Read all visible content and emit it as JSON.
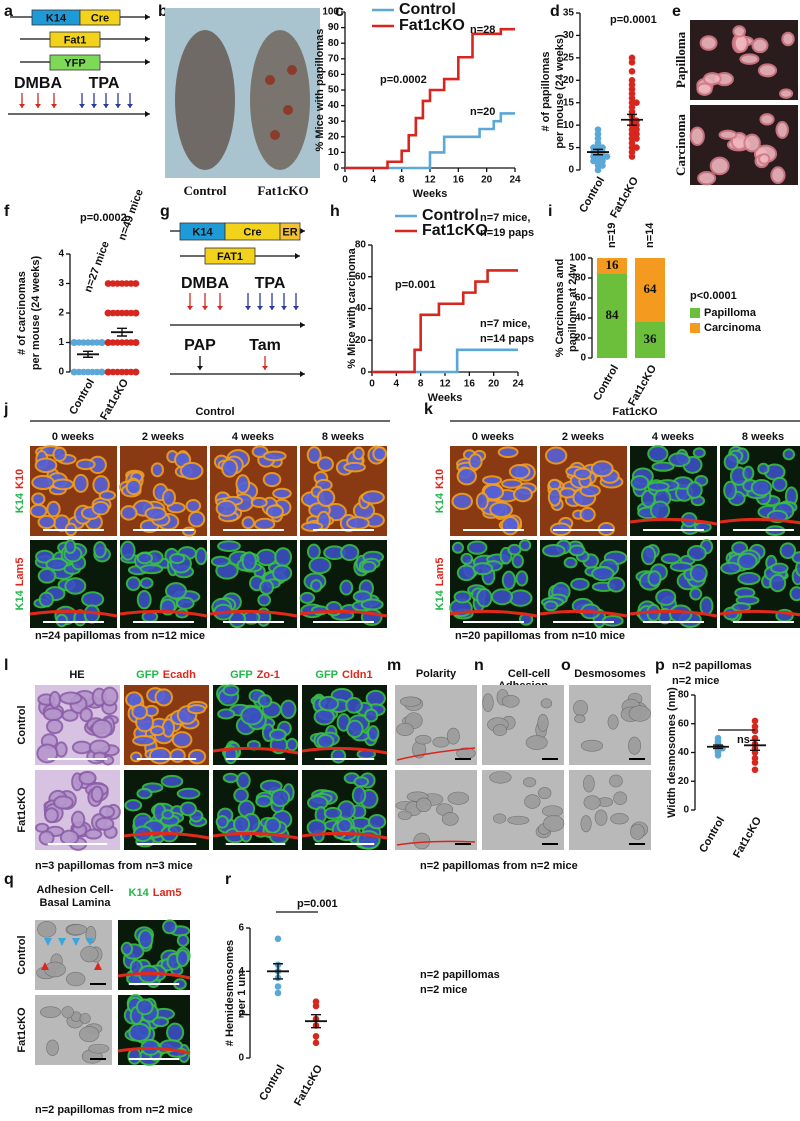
{
  "figure": {
    "a": {
      "label": "a",
      "bars": [
        "K14",
        "Cre",
        "Fat1",
        "YFP"
      ],
      "treatments": [
        "DMBA",
        "TPA"
      ]
    },
    "b": {
      "label": "b",
      "captions": [
        "Control",
        "Fat1cKO"
      ]
    },
    "e": {
      "label": "e",
      "rows": [
        "Papilloma",
        "Carcinoma"
      ]
    },
    "g": {
      "label": "g",
      "bars": [
        "K14",
        "Cre",
        "ER",
        "FAT1"
      ],
      "treatments": [
        "DMBA",
        "TPA"
      ],
      "time": [
        "PAP",
        "Tam"
      ]
    },
    "j": {
      "label": "j",
      "title": "Control",
      "columns": [
        "0 weeks",
        "2 weeks",
        "4 weeks",
        "8 weeks"
      ],
      "rows": [
        {
          "green": "K14",
          "red": "K10"
        },
        {
          "green": "K14",
          "red": "Lam5"
        }
      ],
      "note": "n=24 papillomas from n=12 mice"
    },
    "k": {
      "label": "k",
      "title": "Fat1cKO",
      "columns": [
        "0 weeks",
        "2 weeks",
        "4 weeks",
        "8 weeks"
      ],
      "rows": [
        {
          "green": "K14",
          "red": "K10"
        },
        {
          "green": "K14",
          "red": "Lam5"
        }
      ],
      "note": "n=20 papillomas from n=10 mice"
    },
    "l": {
      "label": "l",
      "columns": [
        {
          "text": "HE"
        },
        {
          "green": "GFP",
          "red": "Ecadh"
        },
        {
          "green": "GFP",
          "red": "Zo-1"
        },
        {
          "green": "GFP",
          "red": "Cldn1"
        }
      ],
      "rows": [
        "Control",
        "Fat1cKO"
      ],
      "note": "n=3 papillomas from n=3 mice"
    },
    "mno": {
      "panels": [
        {
          "label": "m",
          "title": [
            "Polarity"
          ]
        },
        {
          "label": "n",
          "title": [
            "Cell-cell",
            "Adhesion"
          ]
        },
        {
          "label": "o",
          "title": [
            "Desmosomes"
          ]
        }
      ],
      "note": "n=2 papillomas from n=2 mice"
    },
    "q": {
      "label": "q",
      "title": [
        "Adhesion Cell-",
        "Basal Lamina"
      ],
      "stain": {
        "green": "K14",
        "red": "Lam5"
      },
      "rows": [
        "Control",
        "Fat1cKO"
      ],
      "note": "n=2 papillomas from n=2 mice"
    }
  },
  "chart_data": [
    {
      "type": "line",
      "label": "c",
      "ylabel": "% Mice with papillomas",
      "xlabel": "Weeks",
      "xlim": [
        0,
        24
      ],
      "xticks": [
        0,
        4,
        8,
        12,
        16,
        20,
        24
      ],
      "ylim": [
        0,
        100
      ],
      "yticks": [
        0,
        10,
        20,
        30,
        40,
        50,
        60,
        70,
        80,
        90,
        100
      ],
      "series": [
        {
          "name": "Control",
          "color": "#5aa8d8",
          "x": [
            0,
            12,
            12,
            14,
            14,
            19,
            19,
            21,
            21,
            22,
            22,
            24
          ],
          "values": [
            0,
            0,
            10,
            10,
            20,
            20,
            25,
            25,
            30,
            30,
            35,
            35
          ]
        },
        {
          "name": "Fat1cKO",
          "color": "#d7261e",
          "x": [
            0,
            6,
            6,
            8,
            8,
            9,
            9,
            10,
            10,
            11,
            11,
            12,
            12,
            14,
            14,
            16,
            16,
            18,
            18,
            22,
            22,
            24
          ],
          "values": [
            0,
            0,
            4,
            4,
            11,
            11,
            21,
            21,
            32,
            32,
            43,
            43,
            50,
            50,
            57,
            57,
            71,
            71,
            86,
            86,
            89,
            89
          ]
        }
      ],
      "annotations": [
        "n=28",
        "n=20",
        "p=0.0002"
      ]
    },
    {
      "type": "dot",
      "label": "d",
      "ylabel": [
        "# of papillomas",
        "per mouse (24 weeks)"
      ],
      "categories": [
        "Control",
        "Fat1cKO"
      ],
      "ylim": [
        0,
        35
      ],
      "yticks": [
        0,
        5,
        10,
        15,
        20,
        25,
        30,
        35
      ],
      "groups": [
        {
          "color": "#5aa8d8",
          "values": [
            0,
            1,
            1,
            2,
            2,
            2,
            3,
            3,
            3,
            3,
            4,
            4,
            4,
            5,
            5,
            5,
            6,
            7,
            8,
            9
          ],
          "mean": 4,
          "sem": 0.6
        },
        {
          "color": "#d7261e",
          "values": [
            3,
            4,
            5,
            5,
            6,
            7,
            7,
            8,
            8,
            9,
            9,
            10,
            10,
            11,
            11,
            12,
            13,
            14,
            15,
            15,
            16,
            17,
            18,
            19,
            20,
            22,
            24,
            25
          ],
          "mean": 11.2,
          "sem": 1.2
        }
      ],
      "annotations": [
        "p=0.0001"
      ]
    },
    {
      "type": "dot",
      "label": "f",
      "ylabel": [
        "# of carcinomas",
        "per mouse (24 weeks)"
      ],
      "categories": [
        "Control",
        "Fat1cKO"
      ],
      "ylim": [
        0,
        4
      ],
      "yticks": [
        0,
        1,
        2,
        3,
        4
      ],
      "groups": [
        {
          "color": "#5aa8d8",
          "values": [
            0,
            0,
            0,
            0,
            0,
            0,
            0,
            0,
            0,
            0,
            0,
            1,
            1,
            1,
            1,
            1,
            1,
            1,
            1,
            1,
            1,
            1,
            1,
            1,
            1,
            1,
            1
          ],
          "mean": 0.6,
          "sem": 0.1
        },
        {
          "color": "#d7261e",
          "values": [
            0,
            0,
            0,
            0,
            0,
            0,
            0,
            0,
            0,
            0,
            0,
            0,
            1,
            1,
            1,
            1,
            1,
            1,
            1,
            1,
            1,
            1,
            1,
            1,
            1,
            1,
            2,
            2,
            2,
            2,
            2,
            2,
            2,
            2,
            2,
            2,
            2,
            2,
            2,
            2,
            3,
            3,
            3,
            3,
            3,
            3,
            3,
            3,
            3
          ],
          "mean": 1.35,
          "sem": 0.13
        }
      ],
      "annotations": [
        "p=0.0002",
        "n=27 mice",
        "n=49 mice"
      ]
    },
    {
      "type": "line",
      "label": "h",
      "ylabel": "% Mice with carcinoma",
      "xlabel": "Weeks",
      "xlim": [
        0,
        24
      ],
      "xticks": [
        0,
        4,
        8,
        12,
        16,
        20,
        24
      ],
      "ylim": [
        0,
        80
      ],
      "yticks": [
        0,
        20,
        40,
        60,
        80
      ],
      "series": [
        {
          "name": "Control",
          "color": "#5aa8d8",
          "x": [
            0,
            14,
            14,
            24
          ],
          "values": [
            0,
            0,
            14,
            14
          ]
        },
        {
          "name": "Fat1cKO",
          "color": "#d7261e",
          "x": [
            0,
            7,
            7,
            8,
            8,
            11,
            11,
            15,
            15,
            17,
            17,
            19,
            19,
            24
          ],
          "values": [
            0,
            0,
            14,
            14,
            36,
            36,
            43,
            43,
            50,
            50,
            57,
            57,
            64,
            64
          ]
        }
      ],
      "annotations": [
        "n=7 mice,",
        "n=19 paps",
        "p=0.001",
        "n=7 mice,",
        "n=14 paps"
      ]
    },
    {
      "type": "stacked_bar",
      "label": "i",
      "ylabel": [
        "% Carcinomas and",
        "papilloms at 24w"
      ],
      "categories": [
        "Control",
        "Fat1cKO"
      ],
      "ylim": [
        0,
        100
      ],
      "yticks": [
        0,
        20,
        40,
        60,
        80,
        100
      ],
      "series": [
        {
          "name": "Papilloma",
          "color": "#6cbf3a",
          "values": [
            84,
            36
          ]
        },
        {
          "name": "Carcinoma",
          "color": "#f39a1f",
          "values": [
            16,
            64
          ]
        }
      ],
      "annotations": [
        "n=19",
        "n=14",
        "p<0.0001"
      ]
    },
    {
      "type": "dot",
      "label": "p",
      "ylabel": [
        "Width desmosomes (nm)"
      ],
      "categories": [
        "Control",
        "Fat1cKO"
      ],
      "ylim": [
        0,
        80
      ],
      "yticks": [
        0,
        20,
        40,
        60,
        80
      ],
      "groups": [
        {
          "color": "#5aa8d8",
          "values": [
            38,
            40,
            41,
            42,
            43,
            43,
            44,
            45,
            46,
            47,
            48,
            50
          ],
          "mean": 44,
          "sem": 1.2
        },
        {
          "color": "#d7261e",
          "values": [
            28,
            33,
            36,
            40,
            43,
            46,
            50,
            55,
            58,
            62
          ],
          "mean": 45,
          "sem": 3.5
        }
      ],
      "annotations": [
        "n=2 papillomas",
        "n=2 mice",
        "ns"
      ]
    },
    {
      "type": "dot",
      "label": "r",
      "ylabel": [
        "# Hemidesmosomes",
        "per 1 um"
      ],
      "categories": [
        "Control",
        "Fat1cKO"
      ],
      "ylim": [
        0,
        6
      ],
      "yticks": [
        0,
        2,
        4,
        6
      ],
      "groups": [
        {
          "color": "#5aa8d8",
          "values": [
            3,
            3.3,
            3.7,
            4,
            4.3,
            5.5
          ],
          "mean": 4,
          "sem": 0.35
        },
        {
          "color": "#d7261e",
          "values": [
            0.7,
            1,
            1.5,
            1.8,
            2.4,
            2.6
          ],
          "mean": 1.7,
          "sem": 0.3
        }
      ],
      "annotations": [
        "p=0.001",
        "n=2 papillomas",
        "n=2 mice"
      ]
    }
  ]
}
